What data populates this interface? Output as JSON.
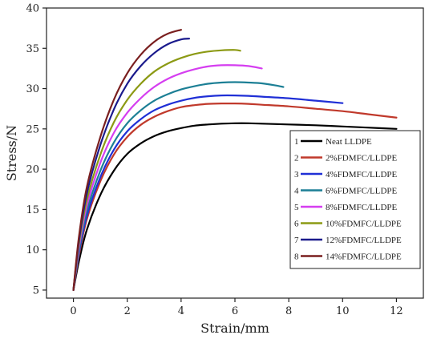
{
  "chart_data": {
    "type": "line",
    "xlabel": "Strain/mm",
    "ylabel": "Stress/N",
    "xlim": [
      -1,
      13
    ],
    "ylim": [
      4,
      40
    ],
    "xticks": [
      0,
      2,
      4,
      6,
      8,
      10,
      12
    ],
    "yticks": [
      5,
      10,
      15,
      20,
      25,
      30,
      35,
      40
    ],
    "legend_position": "right",
    "grid": false,
    "series": [
      {
        "number": "1",
        "name": "Neat LLDPE",
        "color": "#000000",
        "x": [
          0,
          0.2,
          0.5,
          1,
          1.5,
          2,
          2.5,
          3,
          3.5,
          4,
          4.5,
          5,
          5.5,
          6,
          6.5,
          7,
          8,
          9,
          10,
          11,
          12
        ],
        "y": [
          5,
          8.5,
          12.5,
          16.8,
          19.8,
          21.9,
          23.2,
          24.1,
          24.7,
          25.1,
          25.4,
          25.55,
          25.65,
          25.7,
          25.7,
          25.65,
          25.55,
          25.45,
          25.3,
          25.15,
          25.0
        ]
      },
      {
        "number": "2",
        "name": "2%FDMFC/LLDPE",
        "color": "#c0392b",
        "x": [
          0,
          0.2,
          0.5,
          1,
          1.5,
          2,
          2.5,
          3,
          3.5,
          4,
          4.5,
          5,
          5.5,
          6,
          6.5,
          7,
          8,
          9,
          10,
          11,
          12
        ],
        "y": [
          5,
          9.2,
          13.8,
          18.5,
          21.8,
          24,
          25.5,
          26.5,
          27.2,
          27.7,
          27.95,
          28.1,
          28.15,
          28.15,
          28.1,
          28.0,
          27.8,
          27.5,
          27.2,
          26.8,
          26.4
        ]
      },
      {
        "number": "3",
        "name": "4%FDMFC/LLDPE",
        "color": "#1f2fd6",
        "x": [
          0,
          0.2,
          0.5,
          1,
          1.5,
          2,
          2.5,
          3,
          3.5,
          4,
          4.5,
          5,
          5.5,
          6,
          6.5,
          7,
          8,
          9,
          10
        ],
        "y": [
          5,
          9.5,
          14.2,
          19,
          22.4,
          24.7,
          26.2,
          27.3,
          28.0,
          28.5,
          28.85,
          29.05,
          29.15,
          29.15,
          29.1,
          29.0,
          28.8,
          28.5,
          28.2
        ]
      },
      {
        "number": "4",
        "name": "6%FDMFC/LLDPE",
        "color": "#1c7f95",
        "x": [
          0,
          0.2,
          0.5,
          1,
          1.5,
          2,
          2.5,
          3,
          3.5,
          4,
          4.5,
          5,
          5.5,
          6,
          6.5,
          7,
          7.5,
          7.8
        ],
        "y": [
          5,
          9.8,
          14.8,
          19.8,
          23.3,
          25.7,
          27.3,
          28.5,
          29.3,
          29.9,
          30.3,
          30.6,
          30.75,
          30.8,
          30.75,
          30.65,
          30.4,
          30.2
        ]
      },
      {
        "number": "5",
        "name": "8%FDMFC/LLDPE",
        "color": "#d53ef0",
        "x": [
          0,
          0.2,
          0.5,
          1,
          1.5,
          2,
          2.5,
          3,
          3.5,
          4,
          4.5,
          5,
          5.5,
          6,
          6.5,
          7
        ],
        "y": [
          5,
          10.2,
          15.5,
          20.8,
          24.5,
          27,
          28.8,
          30.2,
          31.2,
          31.9,
          32.4,
          32.75,
          32.9,
          32.9,
          32.8,
          32.5
        ]
      },
      {
        "number": "6",
        "name": "10%FDMFC/LLDPE",
        "color": "#8c9a14",
        "x": [
          0,
          0.2,
          0.5,
          1,
          1.5,
          2,
          2.5,
          3,
          3.5,
          4,
          4.5,
          5,
          5.5,
          6,
          6.2
        ],
        "y": [
          5,
          10.6,
          16.2,
          21.8,
          25.8,
          28.6,
          30.6,
          32.1,
          33.1,
          33.8,
          34.3,
          34.6,
          34.75,
          34.8,
          34.7
        ]
      },
      {
        "number": "7",
        "name": "12%FDMFC/LLDPE",
        "color": "#1a1a8c",
        "x": [
          0,
          0.2,
          0.5,
          1,
          1.5,
          2,
          2.5,
          3,
          3.5,
          4,
          4.3
        ],
        "y": [
          5,
          11,
          17,
          23,
          27.4,
          30.6,
          32.8,
          34.4,
          35.5,
          36.1,
          36.2
        ]
      },
      {
        "number": "8",
        "name": "14%FDMFC/LLDPE",
        "color": "#7a1f1f",
        "x": [
          0,
          0.2,
          0.5,
          1,
          1.5,
          2,
          2.5,
          3,
          3.5,
          4
        ],
        "y": [
          5,
          11.5,
          17.8,
          24,
          28.6,
          31.9,
          34.2,
          35.8,
          36.8,
          37.3
        ]
      }
    ]
  }
}
